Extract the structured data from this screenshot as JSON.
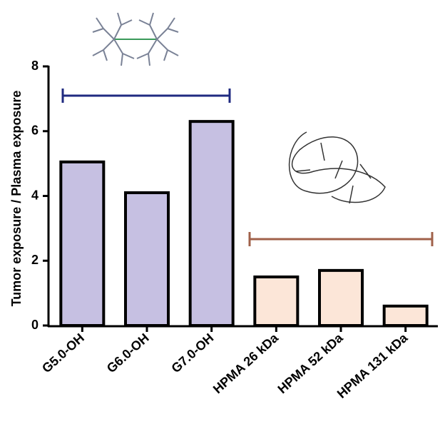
{
  "chart_data": {
    "type": "bar",
    "y_label": "Tumor exposure / Plasma exposure",
    "categories": [
      "G5.0-OH",
      "G6.0-OH",
      "G7.0-OH",
      "HPMA 26 kDa",
      "HPMA 52 kDa",
      "HPMA 131 kDa"
    ],
    "values": [
      5.05,
      4.1,
      6.3,
      1.5,
      1.7,
      0.6
    ],
    "colors": [
      "#c6c0e2",
      "#c6c0e2",
      "#c6c0e2",
      "#fce6d8",
      "#fce6d8",
      "#fce6d8"
    ],
    "ylim": [
      0,
      8
    ],
    "yticks": [
      0,
      2,
      4,
      6,
      8
    ]
  }
}
